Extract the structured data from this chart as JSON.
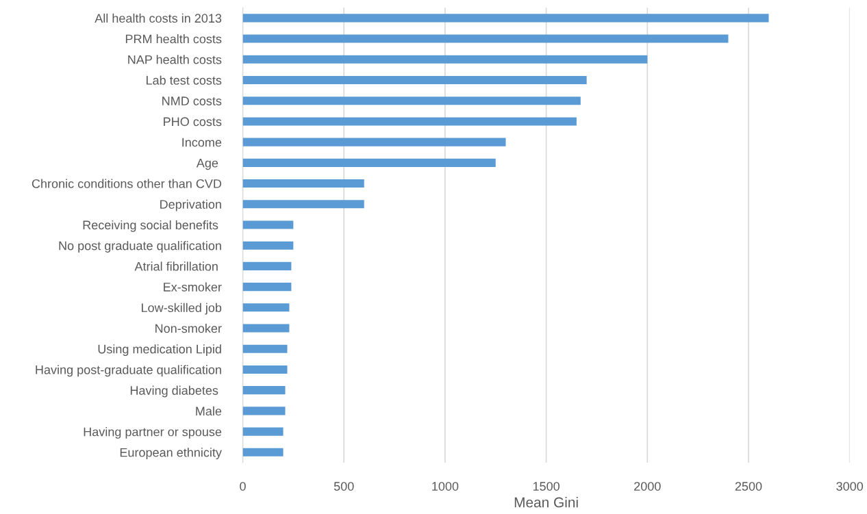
{
  "chart_data": {
    "type": "bar",
    "orientation": "horizontal",
    "xlabel": "Mean Gini",
    "categories": [
      "All health costs in 2013",
      "PRM health costs",
      "NAP health costs",
      "Lab test costs",
      "NMD costs",
      "PHO costs",
      "Income",
      "Age ",
      "Chronic conditions other than CVD",
      "Deprivation",
      "Receiving social benefits ",
      "No post graduate qualification",
      "Atrial fibrillation ",
      "Ex-smoker",
      "Low-skilled job",
      "Non-smoker",
      "Using medication Lipid",
      "Having post-graduate qualification",
      "Having diabetes ",
      "Male",
      "Having partner or spouse",
      "European ethnicity"
    ],
    "values": [
      2600,
      2400,
      2000,
      1700,
      1670,
      1650,
      1300,
      1250,
      600,
      600,
      250,
      250,
      240,
      240,
      230,
      230,
      220,
      220,
      210,
      210,
      200,
      200
    ],
    "color": "#5b9bd5",
    "xlim": [
      0,
      3000
    ],
    "xticks": [
      0,
      500,
      1000,
      1500,
      2000,
      2500,
      3000
    ],
    "grid": "x"
  }
}
